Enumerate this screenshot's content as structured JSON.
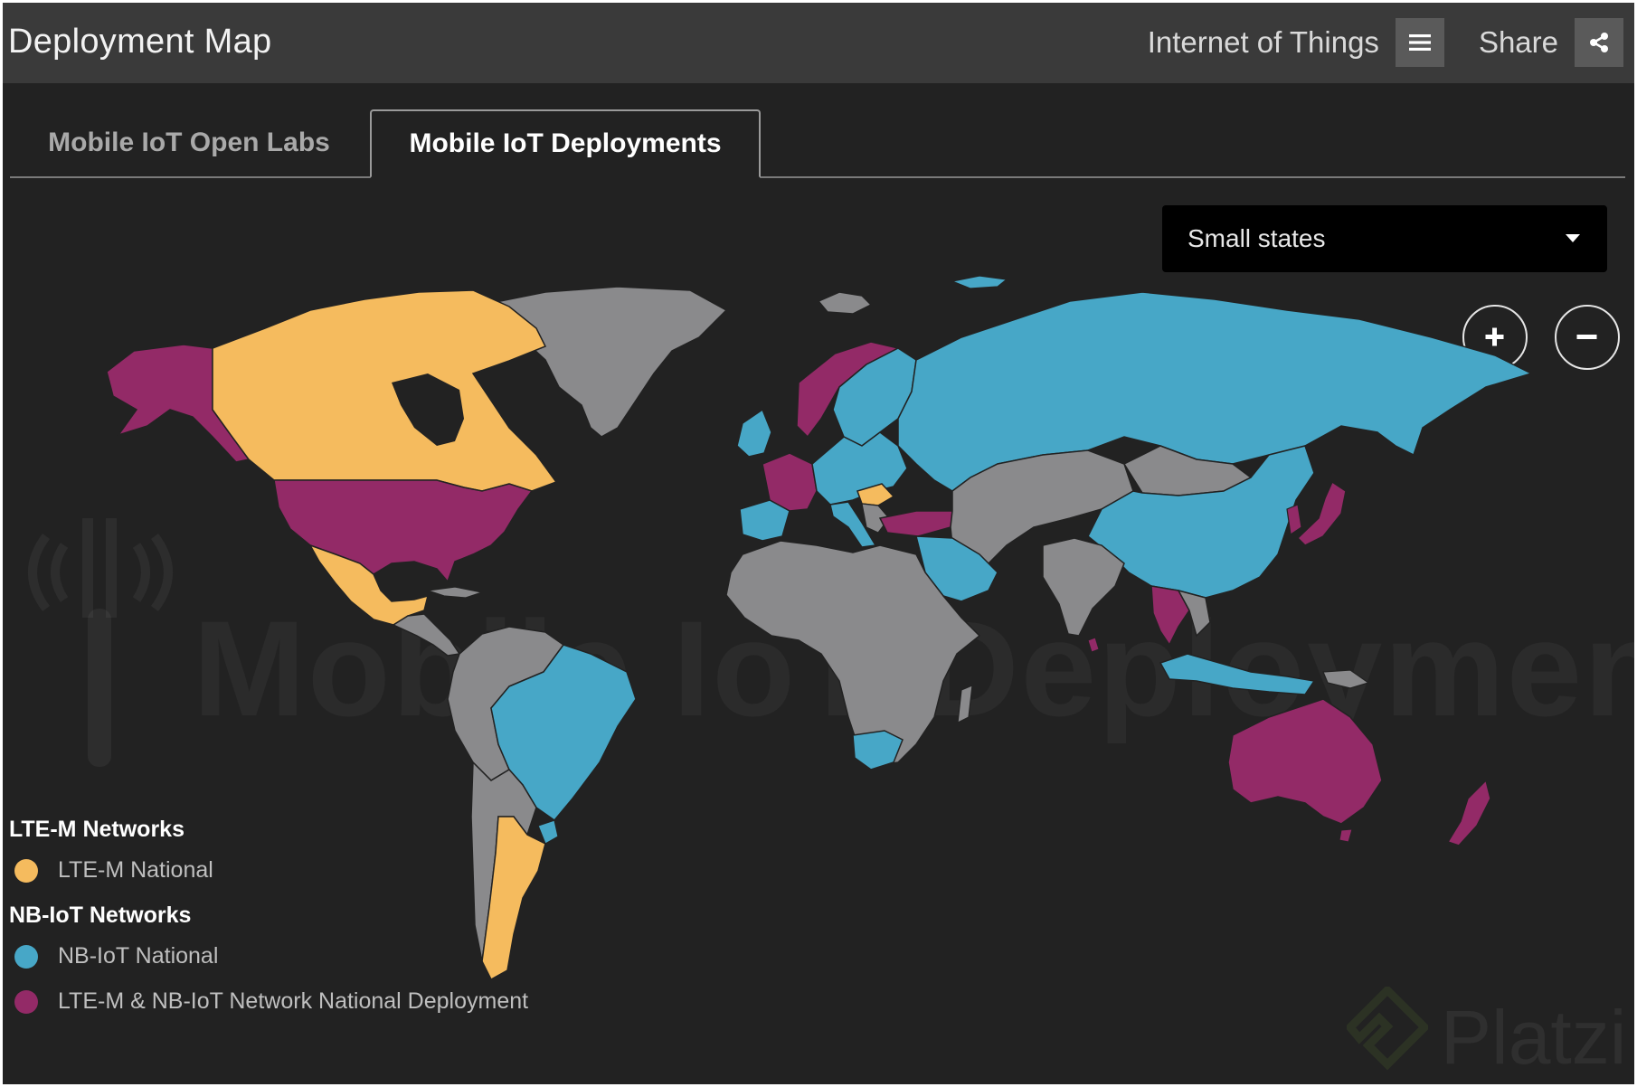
{
  "header": {
    "title": "Deployment Map",
    "category": "Internet of Things",
    "share_label": "Share",
    "menu_icon": "hamburger-menu-icon",
    "share_icon": "share-icon"
  },
  "tabs": [
    {
      "label": "Mobile IoT Open Labs",
      "active": false
    },
    {
      "label": "Mobile IoT Deployments",
      "active": true
    }
  ],
  "dropdown": {
    "selected": "Small states"
  },
  "zoom": {
    "in_icon": "plus-icon",
    "out_icon": "minus-icon"
  },
  "watermark": {
    "text": "Mobile IoT Deployments",
    "brand": "Platzi"
  },
  "colors": {
    "background": "#222222",
    "header": "#3a3a3a",
    "lte_m": "#f5bb5e",
    "nb_iot": "#47a7c7",
    "both": "#932a67",
    "no_deployment": "#8a8a8c"
  },
  "legend": {
    "lte_heading": "LTE-M Networks",
    "lte_national": "LTE-M National",
    "nb_heading": "NB-IoT Networks",
    "nb_national": "NB-IoT National",
    "both_national": "LTE-M & NB-IoT Network National Deployment"
  }
}
